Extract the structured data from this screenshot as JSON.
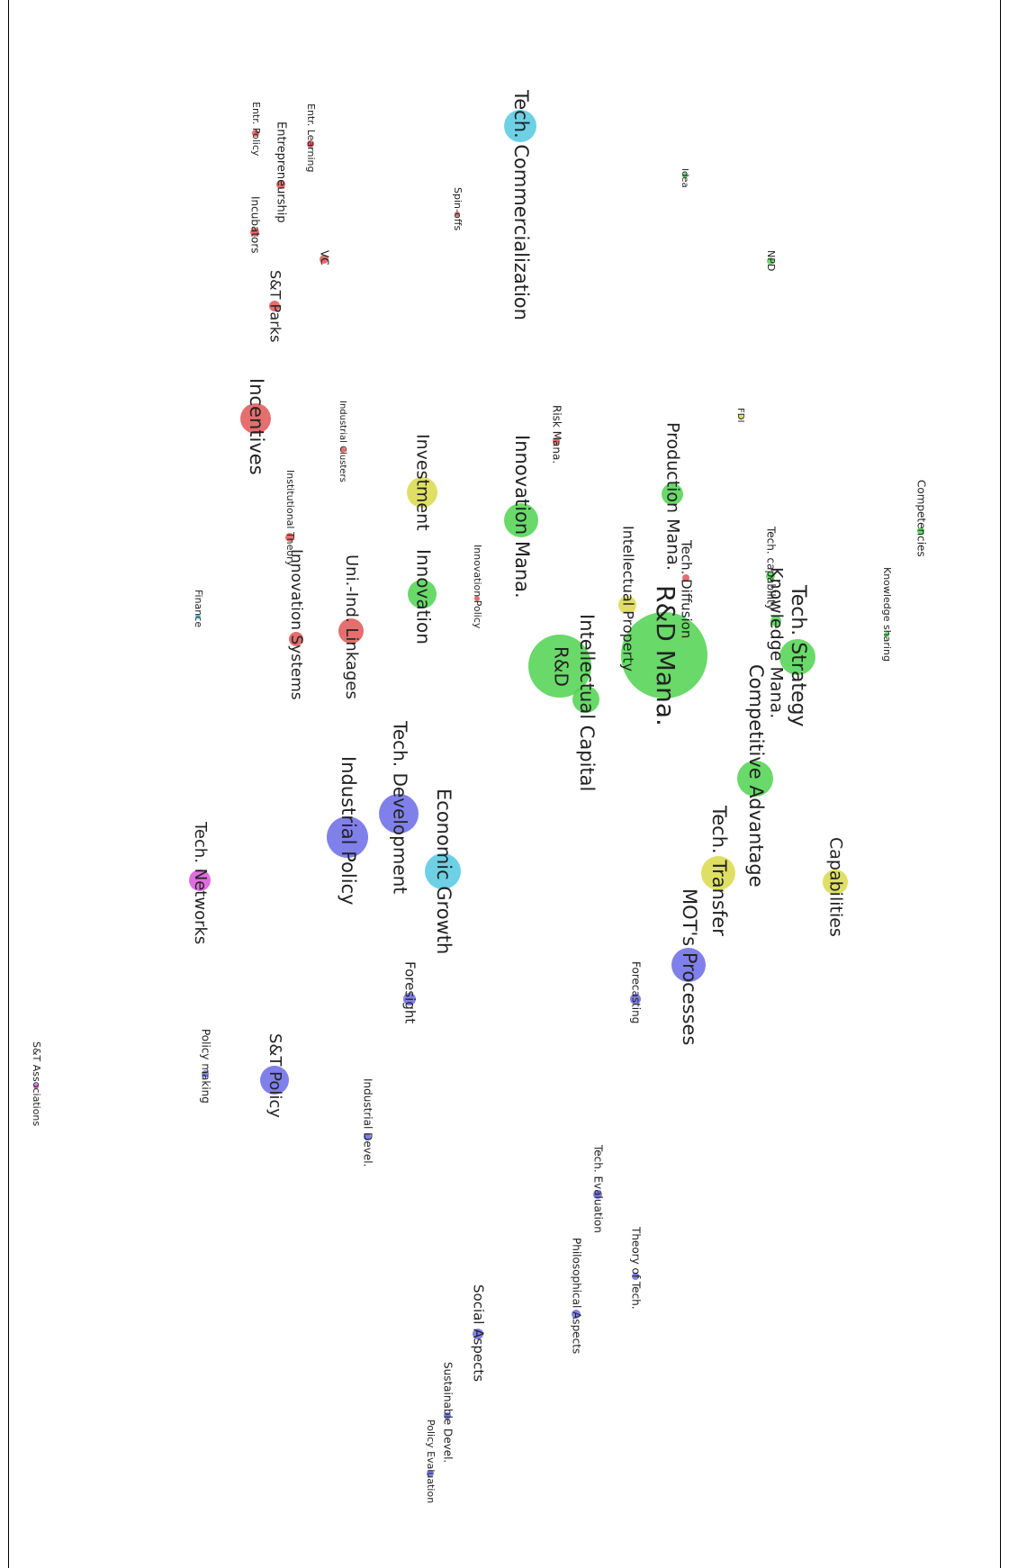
{
  "map": {
    "colors": {
      "red": "#e05555",
      "green": "#4fd24f",
      "yellow": "#d9d94a",
      "cyan": "#55c8e0",
      "blue": "#6a6ae8",
      "magenta": "#d855d8",
      "label": "#222222"
    },
    "nodes": [
      {
        "label": "Tech. Commercialization",
        "color": "cyan"
      },
      {
        "label": "Entr. Learning",
        "color": "red"
      },
      {
        "label": "Entrepreneurship",
        "color": "red"
      },
      {
        "label": "Entr. Policy",
        "color": "red"
      },
      {
        "label": "Incubators",
        "color": "red"
      },
      {
        "label": "S&T Parks",
        "color": "red"
      },
      {
        "label": "VC",
        "color": "red"
      },
      {
        "label": "Spin-offs",
        "color": "red"
      },
      {
        "label": "Idea",
        "color": "green"
      },
      {
        "label": "NPD",
        "color": "green"
      },
      {
        "label": "FDI",
        "color": "yellow"
      },
      {
        "label": "Incentives",
        "color": "red"
      },
      {
        "label": "Industrial Clusters",
        "color": "red"
      },
      {
        "label": "Risk Mana.",
        "color": "red"
      },
      {
        "label": "Institutional Theory",
        "color": "red"
      },
      {
        "label": "Investment",
        "color": "yellow"
      },
      {
        "label": "Innovation Mana.",
        "color": "green"
      },
      {
        "label": "Production Mana.",
        "color": "green"
      },
      {
        "label": "Intellectual Property",
        "color": "yellow"
      },
      {
        "label": "Tech. Diffusion",
        "color": "red"
      },
      {
        "label": "Innovation Policy",
        "color": "red"
      },
      {
        "label": "Innovation",
        "color": "green"
      },
      {
        "label": "Innovation Systems",
        "color": "red"
      },
      {
        "label": "Uni.-Ind. Linkages",
        "color": "red"
      },
      {
        "label": "Finance",
        "color": "cyan"
      },
      {
        "label": "R&D Mana.",
        "color": "green"
      },
      {
        "label": "R&D",
        "color": "green"
      },
      {
        "label": "Intellectual Capital",
        "color": "green"
      },
      {
        "label": "Competencies",
        "color": "green"
      },
      {
        "label": "Knowledge sharing",
        "color": "green"
      },
      {
        "label": "Tech. capability",
        "color": "green"
      },
      {
        "label": "Tech. Strategy",
        "color": "green"
      },
      {
        "label": "Knowledge Mana.",
        "color": "green"
      },
      {
        "label": "Competitive Advantage",
        "color": "green"
      },
      {
        "label": "Tech. Development",
        "color": "blue"
      },
      {
        "label": "Industrial Policy",
        "color": "blue"
      },
      {
        "label": "Economic Growth",
        "color": "cyan"
      },
      {
        "label": "Tech. Transfer",
        "color": "yellow"
      },
      {
        "label": "Capabilities",
        "color": "yellow"
      },
      {
        "label": "MOT's Processes",
        "color": "blue"
      },
      {
        "label": "Tech. Networks",
        "color": "magenta"
      },
      {
        "label": "Foresight",
        "color": "blue"
      },
      {
        "label": "Forecasting",
        "color": "blue"
      },
      {
        "label": "S&T Policy",
        "color": "blue"
      },
      {
        "label": "Policy making",
        "color": "blue"
      },
      {
        "label": "Industrial Devel.",
        "color": "blue"
      },
      {
        "label": "S&T Associations",
        "color": "magenta"
      },
      {
        "label": "Tech. Evaluation",
        "color": "blue"
      },
      {
        "label": "Theory of Tech.",
        "color": "blue"
      },
      {
        "label": "Philosophical Aspects",
        "color": "blue"
      },
      {
        "label": "Social Aspects",
        "color": "blue"
      },
      {
        "label": "Sustainable Devel.",
        "color": "blue"
      },
      {
        "label": "Policy Evaluation",
        "color": "blue"
      }
    ]
  }
}
